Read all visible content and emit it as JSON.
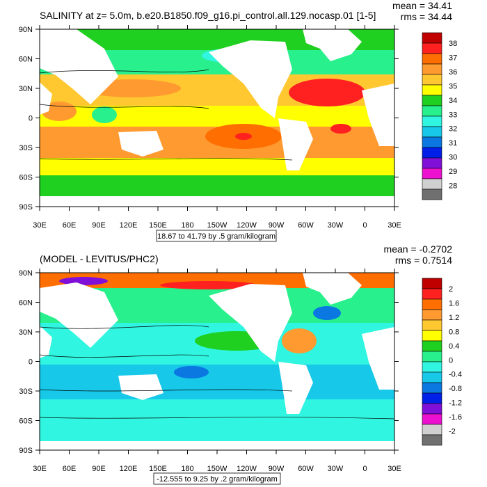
{
  "chart_data": [
    {
      "type": "heatmap",
      "title": "SALINITY at z=   5.0m, b.e20.B1850.f09_g16.pi_control.all.129.nocasp.01 [1-5]",
      "stats": {
        "mean": "mean = 34.41",
        "rms": "rms = 34.44"
      },
      "x_tick_labels": [
        "30E",
        "60E",
        "90E",
        "120E",
        "150E",
        "180",
        "150W",
        "120W",
        "90W",
        "60W",
        "30W",
        "0",
        "30E"
      ],
      "y_tick_labels": [
        "90N",
        "60N",
        "30N",
        "0",
        "30S",
        "60S",
        "90S"
      ],
      "x_range": [
        30,
        390
      ],
      "y_range": [
        -90,
        90
      ],
      "colorbar": {
        "labels": [
          "38",
          "37",
          "36",
          "35",
          "34",
          "33",
          "32",
          "31",
          "30",
          "29",
          "28"
        ],
        "colors": [
          "#c00000",
          "#ff2020",
          "#ff6e00",
          "#ff9a30",
          "#ffc830",
          "#ffff00",
          "#20d020",
          "#28f08c",
          "#30f5e0",
          "#18c8e8",
          "#0a78e0",
          "#0020e8",
          "#8010d8",
          "#ee10d0",
          "#d0d0d0",
          "#707070"
        ]
      },
      "contour_info": "18.67 to 41.79 by .5 gram/kilogram"
    },
    {
      "type": "heatmap",
      "title": "(MODEL - LEVITUS/PHC2)",
      "stats": {
        "mean": "mean = -0.2702",
        "rms": "rms = 0.7514"
      },
      "x_tick_labels": [
        "30E",
        "60E",
        "90E",
        "120E",
        "150E",
        "180",
        "150W",
        "120W",
        "90W",
        "60W",
        "30W",
        "0",
        "30E"
      ],
      "y_tick_labels": [
        "90N",
        "60N",
        "30N",
        "0",
        "30S",
        "60S",
        "90S"
      ],
      "x_range": [
        30,
        390
      ],
      "y_range": [
        -90,
        90
      ],
      "colorbar": {
        "labels": [
          "2",
          "1.6",
          "1.2",
          "0.8",
          "0.4",
          "0",
          "-0.4",
          "-0.8",
          "-1.2",
          "-1.6",
          "-2"
        ],
        "colors": [
          "#c00000",
          "#ff2020",
          "#ff6e00",
          "#ff9a30",
          "#ffc830",
          "#ffff00",
          "#20d020",
          "#28f08c",
          "#30f5e0",
          "#18c8e8",
          "#0a78e0",
          "#0020e8",
          "#8010d8",
          "#ee10d0",
          "#d0d0d0",
          "#707070"
        ]
      },
      "contour_info": "-12.555 to 9.25 by .2 gram/kilogram"
    }
  ]
}
